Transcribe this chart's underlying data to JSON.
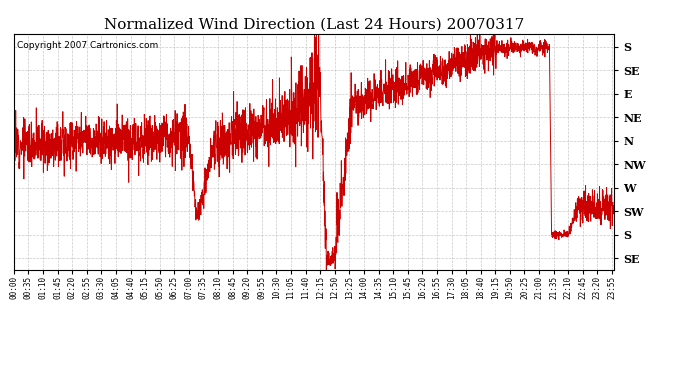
{
  "title": "Normalized Wind Direction (Last 24 Hours) 20070317",
  "copyright": "Copyright 2007 Cartronics.com",
  "line_color": "#cc0000",
  "bg_color": "#ffffff",
  "grid_color": "#bbbbbb",
  "ytick_labels": [
    "S",
    "SE",
    "E",
    "NE",
    "N",
    "NW",
    "W",
    "SW",
    "S",
    "SE"
  ],
  "ytick_values": [
    180,
    135,
    90,
    45,
    0,
    -45,
    -90,
    -135,
    -180,
    -225
  ],
  "ylim": [
    -248,
    205
  ],
  "xtick_labels": [
    "00:00",
    "00:35",
    "01:10",
    "01:45",
    "02:20",
    "02:55",
    "03:30",
    "04:05",
    "04:40",
    "05:15",
    "05:50",
    "06:25",
    "07:00",
    "07:35",
    "08:10",
    "08:45",
    "09:20",
    "09:55",
    "10:30",
    "11:05",
    "11:40",
    "12:15",
    "12:50",
    "13:25",
    "14:00",
    "14:35",
    "15:10",
    "15:45",
    "16:20",
    "16:55",
    "17:30",
    "18:05",
    "18:40",
    "19:15",
    "19:50",
    "20:25",
    "21:00",
    "21:35",
    "22:10",
    "22:45",
    "23:20",
    "23:55"
  ],
  "title_fontsize": 11,
  "copyright_fontsize": 6.5,
  "ylabel_fontsize": 8
}
